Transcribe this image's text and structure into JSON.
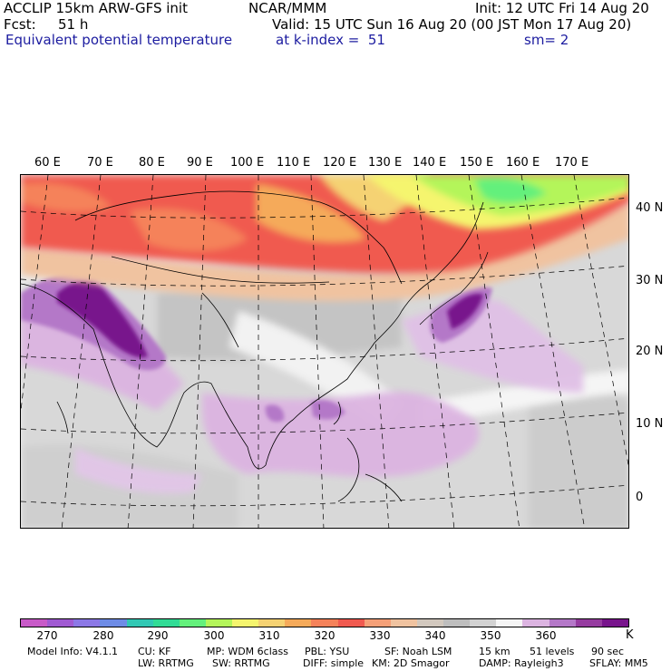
{
  "header": {
    "line1_left": "ACCLIP 15km ARW-GFS init",
    "line1_center": "NCAR/MMM",
    "line1_right": "Init: 12 UTC Fri 14 Aug 20",
    "fcst_label": "Fcst:",
    "fcst_value": "51 h",
    "valid": "Valid: 15 UTC Sun 16 Aug 20 (00 JST Mon 17 Aug 20)",
    "field_name": "Equivalent potential temperature",
    "k_index": "at k-index =  51",
    "smoothing": "sm= 2"
  },
  "map": {
    "lon_labels": [
      "60 E",
      "70 E",
      "80 E",
      "90 E",
      "100 E",
      "110 E",
      "120 E",
      "130 E",
      "140 E",
      "150 E",
      "160 E",
      "170 E"
    ],
    "lat_labels": [
      "40 N",
      "30 N",
      "20 N",
      "10 N",
      "0"
    ]
  },
  "colorbar": {
    "colors": [
      "#c85ac8",
      "#a05ad2",
      "#8c78e6",
      "#6e8ce6",
      "#32c8b4",
      "#32dc96",
      "#64f07c",
      "#b4f55a",
      "#f5f56e",
      "#f5d273",
      "#f5aa5a",
      "#f5825a",
      "#f05a50",
      "#f5a078",
      "#f0c3a0",
      "#d2c8be",
      "#bebebe",
      "#d2d2d2",
      "#f5f5f5",
      "#dcb4e1",
      "#b478c8",
      "#963ca0",
      "#78148c"
    ],
    "tick_labels": [
      "270",
      "280",
      "290",
      "300",
      "310",
      "320",
      "330",
      "340",
      "350",
      "360"
    ],
    "unit": "K"
  },
  "footer": {
    "line1": [
      "Model Info: V4.1.1",
      "CU: KF",
      "MP: WDM 6class",
      "PBL: YSU",
      "SF: Noah LSM",
      "15 km",
      "51 levels",
      "90 sec"
    ],
    "line2": [
      "LW: RRTMG",
      "SW: RRTMG",
      "DIFF: simple",
      "KM: 2D Smagor",
      "DAMP: Rayleigh3",
      "SFLAY: MM5"
    ]
  }
}
